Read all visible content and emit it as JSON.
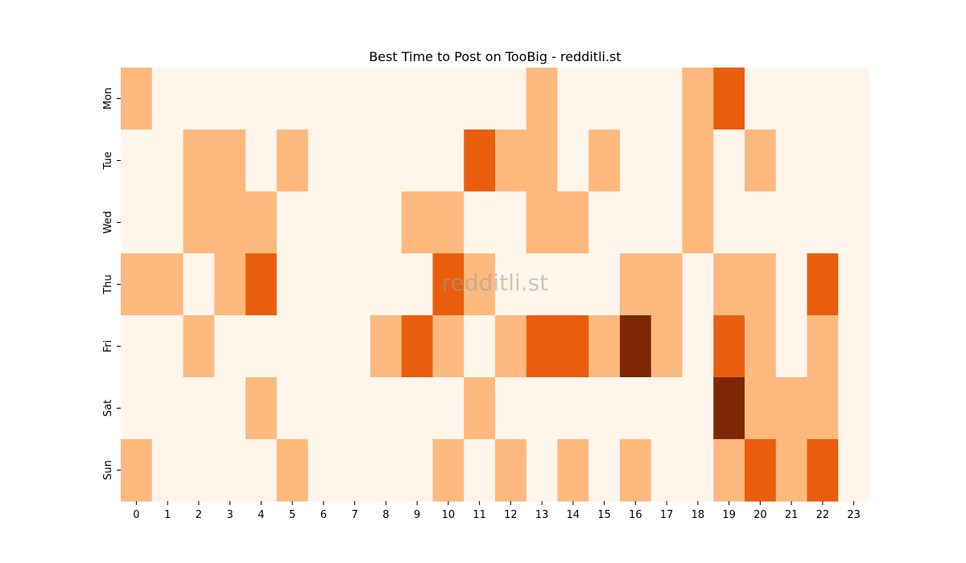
{
  "chart_data": {
    "type": "heatmap",
    "title": "Best Time to Post on TooBig - redditli.st",
    "watermark": "redditli.st",
    "xlabel": "",
    "ylabel": "",
    "x_categories": [
      "0",
      "1",
      "2",
      "3",
      "4",
      "5",
      "6",
      "7",
      "8",
      "9",
      "10",
      "11",
      "12",
      "13",
      "14",
      "15",
      "16",
      "17",
      "18",
      "19",
      "20",
      "21",
      "22",
      "23"
    ],
    "y_categories": [
      "Mon",
      "Tue",
      "Wed",
      "Thu",
      "Fri",
      "Sat",
      "Sun"
    ],
    "values": [
      [
        1,
        0,
        0,
        0,
        0,
        0,
        0,
        0,
        0,
        0,
        0,
        0,
        0,
        1,
        0,
        0,
        0,
        0,
        1,
        2,
        0,
        0,
        0,
        0
      ],
      [
        0,
        0,
        1,
        1,
        0,
        1,
        0,
        0,
        0,
        0,
        0,
        2,
        1,
        1,
        0,
        1,
        0,
        0,
        1,
        0,
        1,
        0,
        0,
        0
      ],
      [
        0,
        0,
        1,
        1,
        1,
        0,
        0,
        0,
        0,
        1,
        1,
        0,
        0,
        1,
        1,
        0,
        0,
        0,
        1,
        0,
        0,
        0,
        0,
        0
      ],
      [
        1,
        1,
        0,
        1,
        2,
        0,
        0,
        0,
        0,
        0,
        2,
        1,
        0,
        0,
        0,
        0,
        1,
        1,
        0,
        1,
        1,
        0,
        2,
        0
      ],
      [
        0,
        0,
        1,
        0,
        0,
        0,
        0,
        0,
        1,
        2,
        1,
        0,
        1,
        2,
        2,
        1,
        3,
        1,
        0,
        2,
        1,
        0,
        1,
        0
      ],
      [
        0,
        0,
        0,
        0,
        1,
        0,
        0,
        0,
        0,
        0,
        0,
        1,
        0,
        0,
        0,
        0,
        0,
        0,
        0,
        3,
        1,
        1,
        1,
        0
      ],
      [
        1,
        0,
        0,
        0,
        0,
        1,
        0,
        0,
        0,
        0,
        1,
        0,
        1,
        0,
        1,
        0,
        1,
        0,
        0,
        1,
        2,
        1,
        2,
        0
      ]
    ],
    "color_scale": [
      "#fff5eb",
      "#fdb97d",
      "#e95e0d",
      "#7f2704"
    ],
    "colormap": "Oranges",
    "grid": false,
    "legend": "none"
  }
}
